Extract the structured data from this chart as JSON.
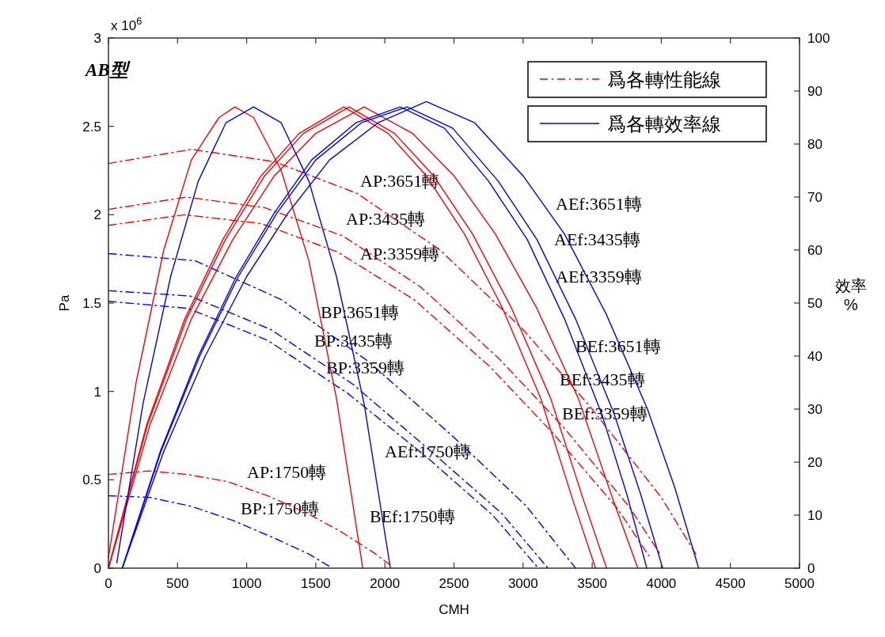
{
  "chart_data": {
    "type": "line",
    "title": "AB型",
    "xlabel": "CMH",
    "ylabel": "Pa",
    "y2label": "效率 %",
    "annotations": [
      "x 10$^{6}$",
      "AP:3651轉",
      "AP:3435轉",
      "AP:3359轉",
      "AP:1750轉",
      "BP:3651轉",
      "BP:3435轉",
      "BP:3359轉",
      "BP:1750轉",
      "AEf:3651轉",
      "AEf:3435轉",
      "AEf:3359轉",
      "AEf:1750轉",
      "BEf:3651轉",
      "BEf:3435轉",
      "BEf:3359轉",
      "BEf:1750轉"
    ],
    "legend": "top right",
    "grid": false,
    "marker": "none",
    "xlim": [
      0,
      5000
    ],
    "xticks": [
      0,
      500,
      1000,
      1500,
      2000,
      2500,
      3000,
      3500,
      4000,
      4500,
      5000
    ],
    "ylim": [
      0,
      3
    ],
    "yticks": [
      0,
      0.5,
      1,
      1.5,
      2,
      2.5,
      3
    ],
    "y2lim": [
      0,
      100
    ],
    "y2ticks": [
      0,
      10,
      20,
      30,
      40,
      50,
      60,
      70,
      80,
      90,
      100
    ],
    "series": [
      {
        "name": "爲各轉性能線",
        "color": "#ff0000",
        "line_style": "dashed",
        "x": [
          0,
          600,
          1200,
          1800,
          2400,
          3000,
          3500,
          4000,
          4250
        ],
        "values": [
          2.29,
          2.37,
          2.3,
          2.12,
          1.8,
          1.35,
          0.9,
          0.4,
          0.08
        ]
      },
      {
        "color": "#ff0000",
        "line_style": "dashed",
        "x": [
          0,
          565,
          1130,
          1695,
          2260,
          2820,
          3290,
          3765,
          4000
        ],
        "values": [
          2.03,
          2.1,
          2.04,
          1.88,
          1.59,
          1.19,
          0.8,
          0.35,
          0.07
        ]
      },
      {
        "color": "#ff0000",
        "line_style": "dashed",
        "x": [
          0,
          550,
          1105,
          1655,
          2210,
          2760,
          3220,
          3680,
          3910
        ],
        "values": [
          1.94,
          2.0,
          1.95,
          1.79,
          1.52,
          1.14,
          0.76,
          0.34,
          0.07
        ]
      },
      {
        "color": "#ff0000",
        "line_style": "dashed",
        "x": [
          0,
          290,
          575,
          860,
          1150,
          1440,
          1675,
          1915,
          2035
        ],
        "values": [
          0.53,
          0.55,
          0.53,
          0.49,
          0.41,
          0.31,
          0.21,
          0.09,
          0.02
        ]
      },
      {
        "color": "#0000ff",
        "line_style": "dashed",
        "x": [
          0,
          625,
          1250,
          1880,
          2500,
          3025,
          3380
        ],
        "values": [
          1.78,
          1.74,
          1.52,
          1.17,
          0.74,
          0.35,
          0
        ]
      },
      {
        "color": "#0000ff",
        "line_style": "dashed",
        "x": [
          0,
          590,
          1175,
          1770,
          2350,
          2845,
          3180
        ],
        "values": [
          1.57,
          1.54,
          1.35,
          1.04,
          0.65,
          0.31,
          0
        ]
      },
      {
        "color": "#0000ff",
        "line_style": "dashed",
        "x": [
          0,
          575,
          1150,
          1730,
          2300,
          2780,
          3110
        ],
        "values": [
          1.51,
          1.47,
          1.29,
          0.99,
          0.63,
          0.3,
          0
        ]
      },
      {
        "color": "#0000ff",
        "line_style": "dashed",
        "x": [
          0,
          300,
          600,
          900,
          1200,
          1450,
          1620
        ],
        "values": [
          0.41,
          0.4,
          0.35,
          0.27,
          0.17,
          0.08,
          0
        ]
      },
      {
        "color": "#ff0000",
        "line_style": "solid",
        "axis": "y2",
        "x": [
          0,
          300,
          600,
          900,
          1200,
          1500,
          1850,
          2200,
          2500,
          2800,
          3100,
          3400,
          3650,
          3830
        ],
        "values": [
          0,
          27,
          47,
          62,
          74,
          82,
          87,
          82,
          74,
          63,
          49,
          32,
          13,
          0
        ]
      },
      {
        "color": "#ff0000",
        "line_style": "solid",
        "axis": "y2",
        "x": [
          0,
          282,
          565,
          847,
          1130,
          1411,
          1741,
          2070,
          2353,
          2635,
          2917,
          3200,
          3435,
          3604
        ],
        "values": [
          0,
          27,
          47,
          62,
          74,
          82,
          87,
          82,
          74,
          63,
          49,
          32,
          13,
          0
        ]
      },
      {
        "color": "#ff0000",
        "line_style": "solid",
        "axis": "y2",
        "x": [
          0,
          276,
          552,
          828,
          1104,
          1380,
          1702,
          2024,
          2300,
          2576,
          2852,
          3128,
          3358,
          3524
        ],
        "values": [
          0,
          27,
          47,
          62,
          74,
          82,
          87,
          82,
          74,
          63,
          49,
          32,
          13,
          0
        ]
      },
      {
        "color": "#ff0000",
        "line_style": "solid",
        "axis": "y2",
        "x": [
          0,
          200,
          400,
          600,
          800,
          915,
          1050,
          1250,
          1450,
          1650,
          1840
        ],
        "values": [
          2,
          35,
          60,
          77,
          85,
          87,
          85,
          75,
          58,
          32,
          0
        ]
      },
      {
        "color": "#0000ff",
        "line_style": "solid",
        "axis": "y2",
        "x": [
          100,
          400,
          700,
          1000,
          1300,
          1600,
          1950,
          2300,
          2650,
          3000,
          3300,
          3600,
          3900,
          4100,
          4270
        ],
        "values": [
          0,
          22,
          40,
          55,
          67,
          77,
          84,
          88,
          84,
          74,
          63,
          48,
          30,
          15,
          0
        ]
      },
      {
        "color": "#0000ff",
        "line_style": "solid",
        "axis": "y2",
        "x": [
          100,
          380,
          660,
          940,
          1220,
          1500,
          1830,
          2160,
          2490,
          2820,
          3100,
          3380,
          3660,
          3850,
          4010
        ],
        "values": [
          0,
          22,
          40,
          55,
          67,
          77,
          84,
          87,
          83,
          73,
          62,
          47,
          29,
          14,
          0
        ]
      },
      {
        "color": "#0000ff",
        "line_style": "solid",
        "axis": "y2",
        "x": [
          100,
          375,
          650,
          925,
          1200,
          1470,
          1790,
          2110,
          2430,
          2750,
          3030,
          3300,
          3570,
          3750,
          3895
        ],
        "values": [
          0,
          22,
          40,
          55,
          67,
          77,
          84,
          87,
          83,
          73,
          62,
          47,
          29,
          14,
          0
        ]
      },
      {
        "name": "爲各轉效率線",
        "color": "#0000ff",
        "line_style": "solid",
        "axis": "y2",
        "x": [
          60,
          250,
          450,
          650,
          850,
          1050,
          1250,
          1450,
          1650,
          1850,
          2040
        ],
        "values": [
          1,
          31,
          55,
          73,
          84,
          87,
          84,
          73,
          55,
          31,
          0
        ]
      }
    ]
  }
}
